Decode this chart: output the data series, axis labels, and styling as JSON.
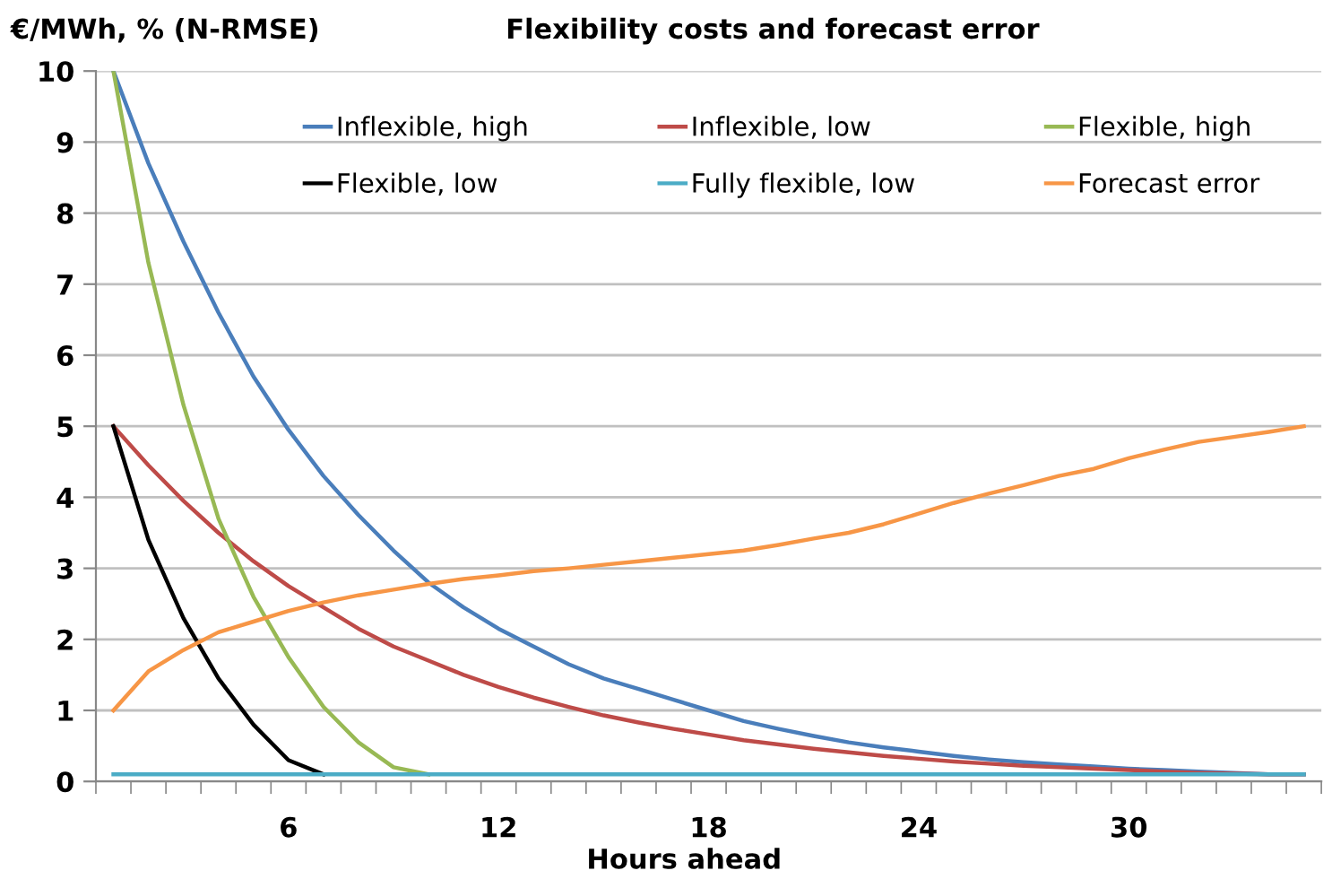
{
  "chart_data": {
    "type": "line",
    "title": "Flexibility costs and forecast error",
    "ylabel": "€/MWh, % (N-RMSE)",
    "xlabel": "Hours ahead",
    "categories": [
      null,
      null,
      null,
      null,
      null,
      "6",
      null,
      null,
      null,
      null,
      null,
      "12",
      null,
      null,
      null,
      null,
      null,
      "18",
      null,
      null,
      null,
      null,
      null,
      "24",
      null,
      null,
      null,
      null,
      null,
      "30",
      null,
      null,
      null,
      null,
      null
    ],
    "series": [
      {
        "name": "Inflexible, high",
        "color": "#4a7ebb",
        "values": [
          10,
          8.7,
          7.6,
          6.6,
          5.7,
          4.95,
          4.3,
          3.75,
          3.25,
          2.8,
          2.45,
          2.15,
          1.9,
          1.65,
          1.45,
          1.3,
          1.15,
          1.0,
          0.85,
          0.74,
          0.64,
          0.55,
          0.48,
          0.42,
          0.36,
          0.31,
          0.27,
          0.24,
          0.21,
          0.18,
          0.16,
          0.14,
          0.12,
          0.1,
          0.1
        ]
      },
      {
        "name": "Inflexible, low",
        "color": "#be4b48",
        "values": [
          5,
          4.45,
          3.95,
          3.5,
          3.1,
          2.75,
          2.45,
          2.15,
          1.9,
          1.7,
          1.5,
          1.33,
          1.18,
          1.05,
          0.93,
          0.83,
          0.74,
          0.66,
          0.58,
          0.52,
          0.46,
          0.41,
          0.36,
          0.32,
          0.28,
          0.25,
          0.22,
          0.2,
          0.18,
          0.16,
          0.14,
          0.12,
          0.11,
          0.1,
          0.1
        ]
      },
      {
        "name": "Flexible, high",
        "color": "#98b954",
        "values": [
          10,
          7.3,
          5.3,
          3.7,
          2.6,
          1.75,
          1.05,
          0.55,
          0.2,
          0.1,
          null,
          null,
          null,
          null,
          null,
          null,
          null,
          null,
          null,
          null,
          null,
          null,
          null,
          null,
          null,
          null,
          null,
          null,
          null,
          null,
          null,
          null,
          null,
          null,
          null
        ]
      },
      {
        "name": "Flexible, low",
        "color": "#000000",
        "values": [
          5,
          3.4,
          2.3,
          1.45,
          0.8,
          0.3,
          0.1,
          null,
          null,
          null,
          null,
          null,
          null,
          null,
          null,
          null,
          null,
          null,
          null,
          null,
          null,
          null,
          null,
          null,
          null,
          null,
          null,
          null,
          null,
          null,
          null,
          null,
          null,
          null,
          null
        ]
      },
      {
        "name": "Fully flexible, low",
        "color": "#4bacc6",
        "values": [
          0.1,
          0.1,
          0.1,
          0.1,
          0.1,
          0.1,
          0.1,
          0.1,
          0.1,
          0.1,
          0.1,
          0.1,
          0.1,
          0.1,
          0.1,
          0.1,
          0.1,
          0.1,
          0.1,
          0.1,
          0.1,
          0.1,
          0.1,
          0.1,
          0.1,
          0.1,
          0.1,
          0.1,
          0.1,
          0.1,
          0.1,
          0.1,
          0.1,
          0.1,
          0.1
        ]
      },
      {
        "name": "Forecast error",
        "color": "#f79646",
        "values": [
          1.0,
          1.55,
          1.85,
          2.1,
          2.25,
          2.4,
          2.52,
          2.62,
          2.7,
          2.78,
          2.85,
          2.9,
          2.96,
          3.0,
          3.05,
          3.1,
          3.15,
          3.2,
          3.25,
          3.33,
          3.42,
          3.5,
          3.62,
          3.77,
          3.92,
          4.05,
          4.17,
          4.3,
          4.4,
          4.55,
          4.67,
          4.78,
          4.85,
          4.92,
          5.0
        ]
      }
    ],
    "ylim": [
      0,
      10
    ],
    "yticks": [
      0,
      1,
      2,
      3,
      4,
      5,
      6,
      7,
      8,
      9,
      10
    ],
    "grid": "y",
    "legend": "top",
    "marker": "none",
    "line_style": "solid"
  }
}
